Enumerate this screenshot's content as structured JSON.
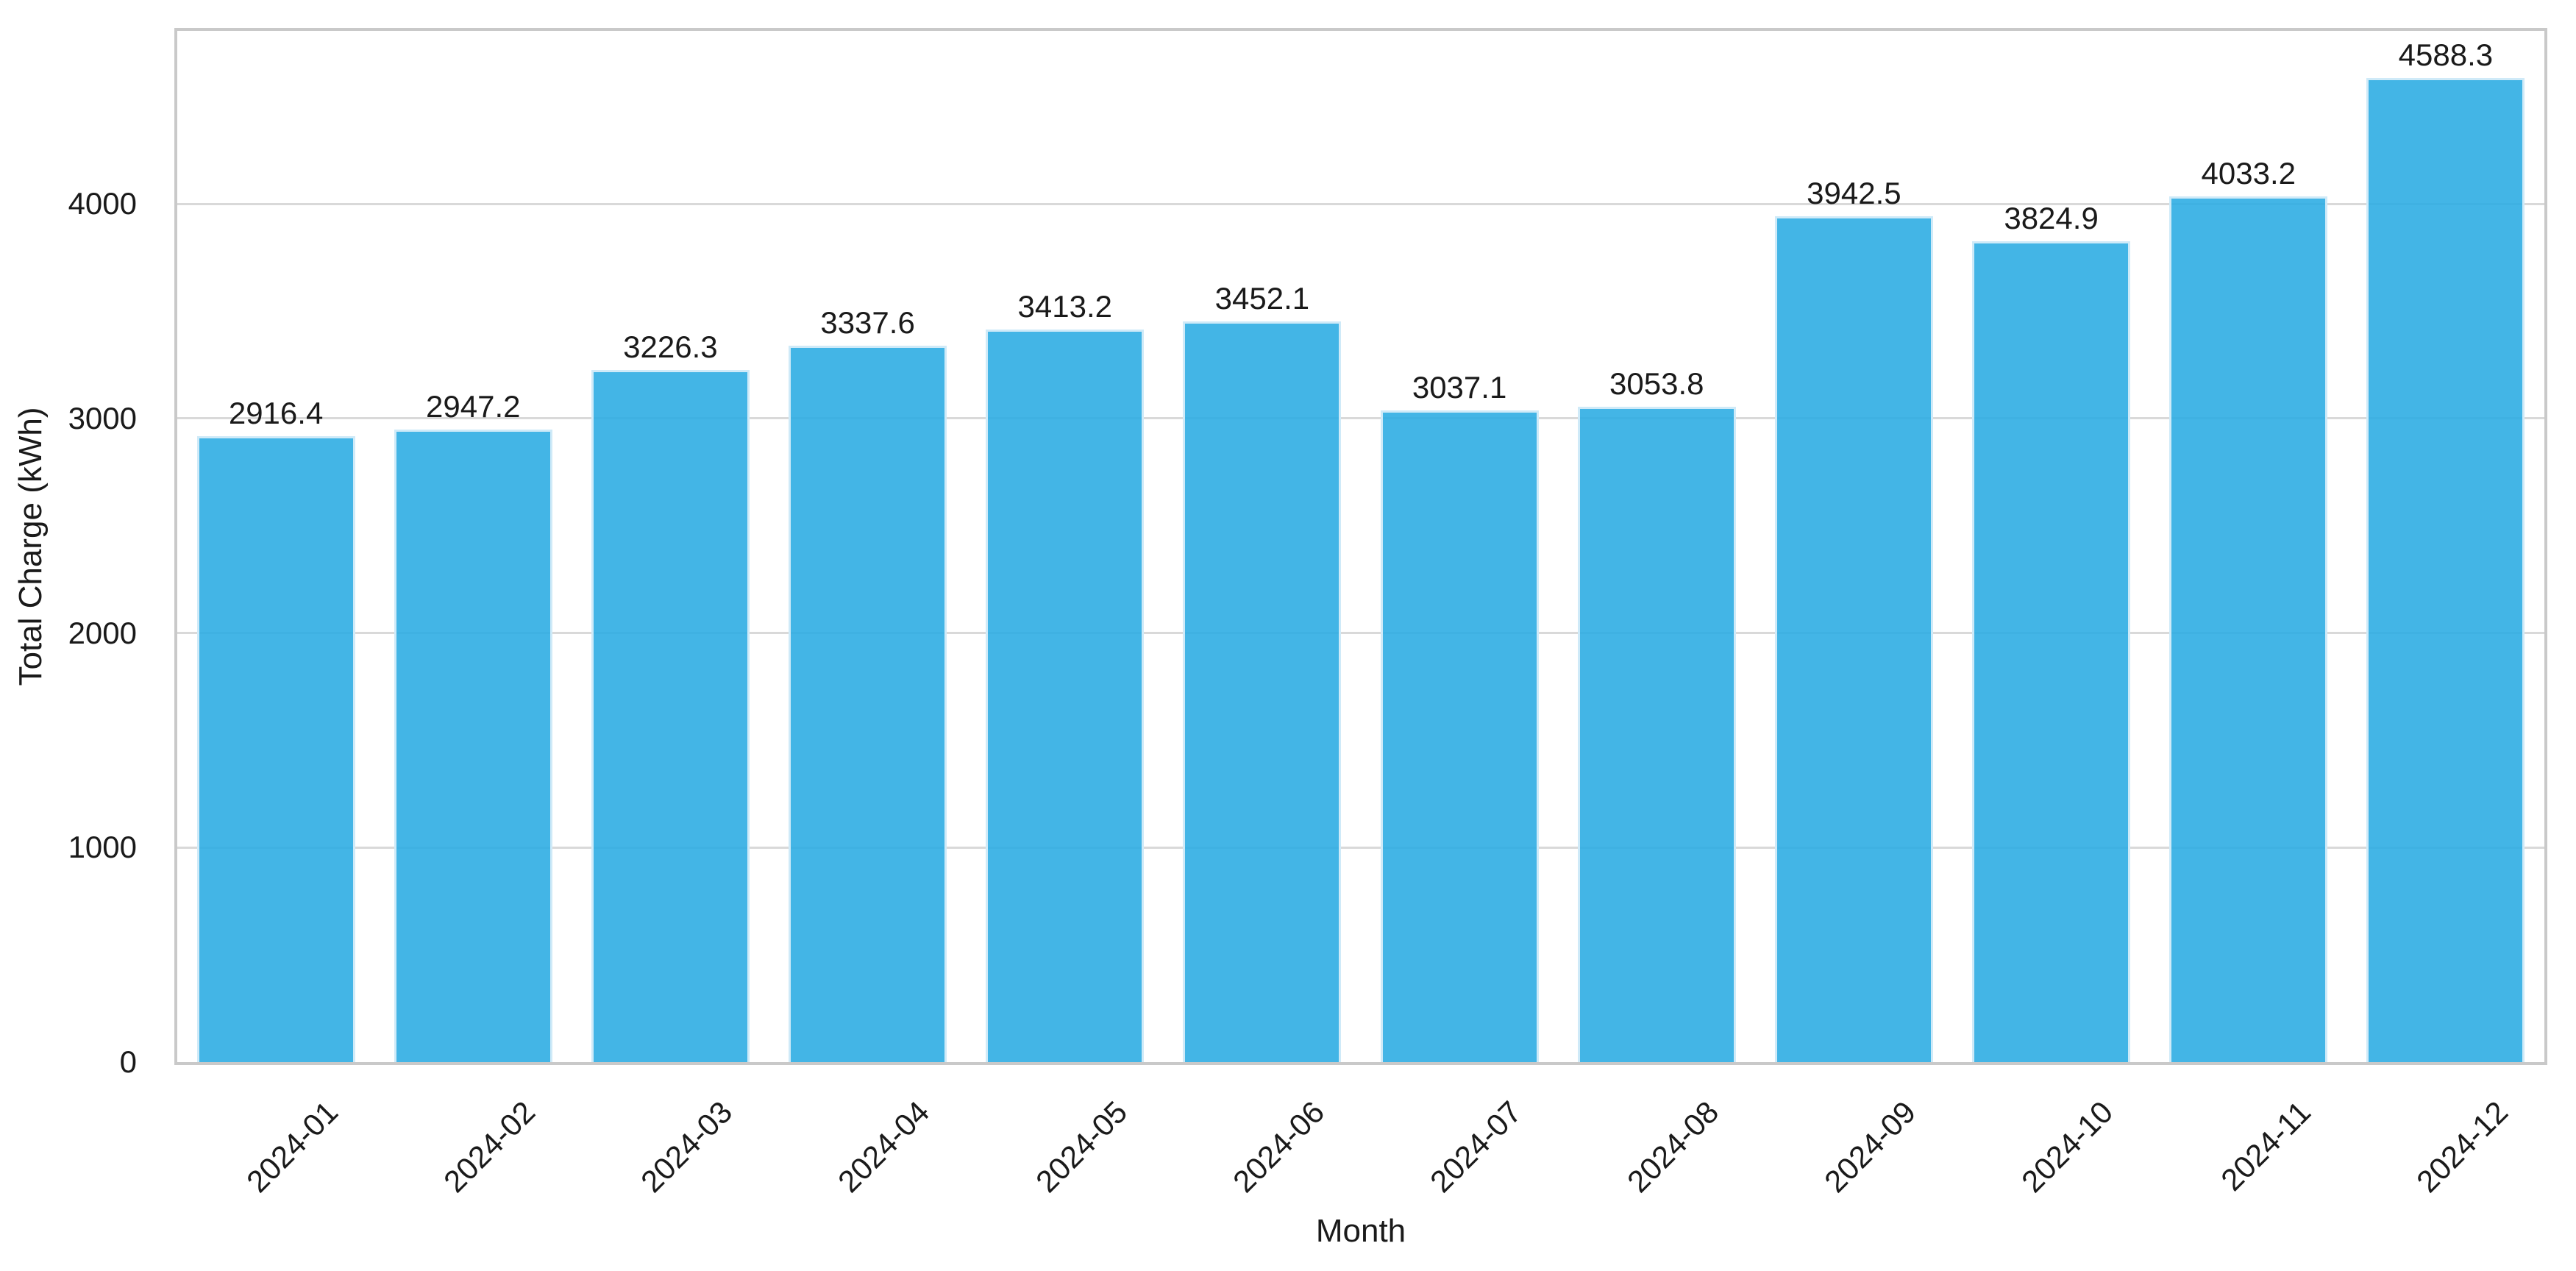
{
  "chart_data": {
    "type": "bar",
    "title": "",
    "xlabel": "Month",
    "ylabel": "Total Charge (kWh)",
    "categories": [
      "2024-01",
      "2024-02",
      "2024-03",
      "2024-04",
      "2024-05",
      "2024-06",
      "2024-07",
      "2024-08",
      "2024-09",
      "2024-10",
      "2024-11",
      "2024-12"
    ],
    "values": [
      2916.4,
      2947.2,
      3226.3,
      3337.6,
      3413.2,
      3452.1,
      3037.1,
      3053.8,
      3942.5,
      3824.9,
      4033.2,
      4588.3
    ],
    "bar_labels": [
      "2916.4",
      "2947.2",
      "3226.3",
      "3337.6",
      "3413.2",
      "3452.1",
      "3037.1",
      "3053.8",
      "3942.5",
      "3824.9",
      "4033.2",
      "4588.3"
    ],
    "yticks": [
      0,
      1000,
      2000,
      3000,
      4000
    ],
    "ytick_labels": [
      "0",
      "1000",
      "2000",
      "3000",
      "4000"
    ],
    "ylim": [
      0,
      4806
    ],
    "grid": true,
    "legend_position": "none",
    "bar_width_fraction": 0.8,
    "xtick_rotation_deg": 45,
    "colors": {
      "bar_fill": "rgba(41,171,226,0.88)",
      "bar_edge": "#cfeaf8",
      "grid_line": "#d9d9d9",
      "spine": "#c9c9c9",
      "text": "#1a1a1a",
      "background": "#ffffff"
    }
  }
}
